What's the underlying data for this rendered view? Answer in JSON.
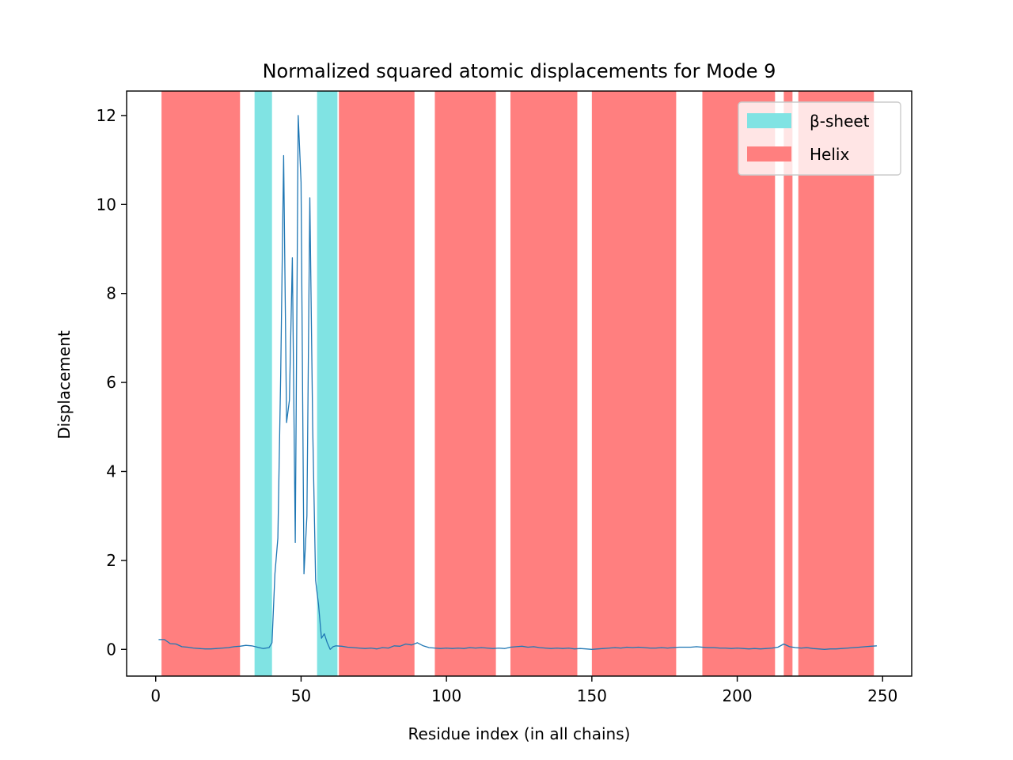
{
  "chart_data": {
    "type": "line",
    "title": "Normalized squared atomic displacements for Mode 9",
    "xlabel": "Residue index (in all chains)",
    "ylabel": "Displacement",
    "xlim": [
      -10,
      260
    ],
    "ylim": [
      -0.6,
      12.55
    ],
    "xticks": [
      0,
      50,
      100,
      150,
      200,
      250
    ],
    "yticks": [
      0,
      2,
      4,
      6,
      8,
      10,
      12
    ],
    "grid": false,
    "legend_position": "top-right",
    "colors": {
      "line": "#1f77b4",
      "sheet": "#80e3e3",
      "helix": "#ff7f7f"
    },
    "legend": [
      {
        "label": "β-sheet",
        "color": "#80e3e3"
      },
      {
        "label": "Helix",
        "color": "#ff7f7f"
      }
    ],
    "regions": {
      "sheet": [
        [
          34,
          40
        ],
        [
          55.5,
          62.5
        ]
      ],
      "helix": [
        [
          2,
          29
        ],
        [
          63,
          89
        ],
        [
          96,
          117
        ],
        [
          122,
          145
        ],
        [
          150,
          179
        ],
        [
          188,
          213
        ],
        [
          216,
          219
        ],
        [
          221,
          247
        ]
      ]
    },
    "series": [
      {
        "x": [
          1,
          3,
          5,
          7,
          9,
          11,
          13,
          15,
          17,
          19,
          21,
          23,
          25,
          27,
          29,
          31,
          33,
          35,
          37,
          39,
          40,
          41,
          42,
          43,
          44,
          45,
          46,
          47,
          48,
          49,
          50,
          51,
          52,
          53,
          54,
          55,
          56,
          57,
          58,
          59,
          60,
          61,
          62,
          64,
          66,
          68,
          70,
          72,
          74,
          76,
          78,
          80,
          82,
          84,
          86,
          88,
          90,
          92,
          94,
          96,
          98,
          100,
          102,
          104,
          106,
          108,
          110,
          112,
          114,
          116,
          118,
          120,
          122,
          124,
          126,
          128,
          130,
          132,
          134,
          136,
          138,
          140,
          142,
          144,
          146,
          148,
          150,
          152,
          154,
          156,
          158,
          160,
          162,
          164,
          166,
          168,
          170,
          172,
          174,
          176,
          178,
          180,
          182,
          184,
          186,
          188,
          190,
          192,
          194,
          196,
          198,
          200,
          202,
          204,
          206,
          208,
          210,
          212,
          214,
          216,
          218,
          220,
          222,
          224,
          226,
          228,
          230,
          232,
          234,
          236,
          238,
          240,
          242,
          244,
          246,
          248
        ],
        "values": [
          0.22,
          0.22,
          0.13,
          0.12,
          0.06,
          0.05,
          0.03,
          0.02,
          0.01,
          0.01,
          0.02,
          0.03,
          0.04,
          0.06,
          0.07,
          0.09,
          0.08,
          0.05,
          0.02,
          0.04,
          0.15,
          1.7,
          2.5,
          6.2,
          11.1,
          5.1,
          5.6,
          8.8,
          2.4,
          12.0,
          10.5,
          1.7,
          3.0,
          10.15,
          5.0,
          1.55,
          1.0,
          0.25,
          0.35,
          0.15,
          0.0,
          0.06,
          0.08,
          0.07,
          0.05,
          0.04,
          0.03,
          0.02,
          0.03,
          0.01,
          0.04,
          0.03,
          0.08,
          0.07,
          0.12,
          0.1,
          0.15,
          0.08,
          0.04,
          0.03,
          0.02,
          0.03,
          0.02,
          0.03,
          0.02,
          0.04,
          0.03,
          0.04,
          0.03,
          0.02,
          0.03,
          0.02,
          0.05,
          0.06,
          0.07,
          0.05,
          0.06,
          0.04,
          0.03,
          0.02,
          0.03,
          0.02,
          0.03,
          0.01,
          0.02,
          0.01,
          0.0,
          0.01,
          0.02,
          0.03,
          0.04,
          0.03,
          0.05,
          0.04,
          0.05,
          0.04,
          0.03,
          0.03,
          0.04,
          0.03,
          0.04,
          0.05,
          0.05,
          0.05,
          0.06,
          0.05,
          0.04,
          0.04,
          0.03,
          0.03,
          0.02,
          0.03,
          0.02,
          0.01,
          0.02,
          0.01,
          0.02,
          0.03,
          0.05,
          0.12,
          0.06,
          0.04,
          0.03,
          0.04,
          0.02,
          0.01,
          0.0,
          0.01,
          0.01,
          0.02,
          0.03,
          0.04,
          0.05,
          0.06,
          0.07,
          0.08
        ]
      }
    ]
  }
}
